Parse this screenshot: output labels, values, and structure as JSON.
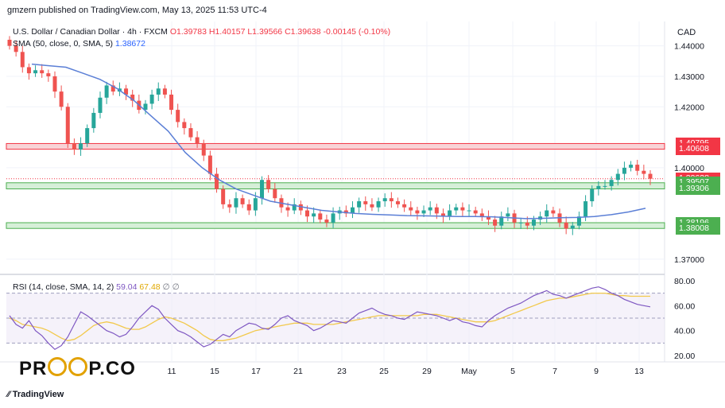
{
  "header": "gmzern published on TradingView.com, May 13, 2025 11:53 UTC-4",
  "legend": {
    "symbol": "U.S. Dollar / Canadian Dollar · 4h · FXCM",
    "o": "O1.39783",
    "h": "H1.40157",
    "l": "L1.39566",
    "c": "C1.39638",
    "chg": "-0.00145 (-0.10%)",
    "sma_label": "SMA (50, close, 0, SMA, 5)",
    "sma_value": "1.38672",
    "rsi_label": "RSI (14, close, SMA, 14, 2)",
    "rsi_value": "59.04",
    "rsi_ma_value": "67.48",
    "rsi_extra1": "∅",
    "rsi_extra2": "∅"
  },
  "currency": "CAD",
  "brand": {
    "left": "PR",
    "right": "P.CO"
  },
  "footer": "TradingView",
  "colors": {
    "up": "#26a69a",
    "down": "#ef5350",
    "sma": "#5b7fd6",
    "rsi": "#7e57c2",
    "rsi_ma": "#f2c94c",
    "resistance": "#f23645",
    "support": "#4caf50"
  },
  "chart_data": [
    {
      "type": "candlestick",
      "title": "U.S. Dollar / Canadian Dollar · 4h · FXCM",
      "ylim": [
        1.365,
        1.448
      ],
      "price_ticks": [
        "1.44000",
        "1.43000",
        "1.42000",
        "1.40000",
        "1.37000"
      ],
      "x_ticks": [
        "11",
        "15",
        "17",
        "21",
        "23",
        "25",
        "29",
        "May",
        "5",
        "7",
        "9",
        "13"
      ],
      "resistance_zone": [
        1.40608,
        1.40795
      ],
      "support_zones": [
        [
          1.39507,
          1.39306
        ],
        [
          1.38196,
          1.38008
        ]
      ],
      "price_labels": [
        {
          "text": "1.40795",
          "value": 1.40795,
          "color": "#f23645"
        },
        {
          "text": "1.40608",
          "value": 1.40608,
          "color": "#f23645"
        },
        {
          "text": "1.39638",
          "value": 1.39638,
          "color": "#f23645"
        },
        {
          "text": "01:06:10",
          "value": 1.3932,
          "color": "#f23645"
        },
        {
          "text": "1.39507",
          "value": 1.39507,
          "color": "#4caf50"
        },
        {
          "text": "1.39306",
          "value": 1.39306,
          "color": "#4caf50"
        },
        {
          "text": "1.38196",
          "value": 1.38196,
          "color": "#4caf50"
        },
        {
          "text": "1.38008",
          "value": 1.38008,
          "color": "#4caf50"
        }
      ],
      "close_series": [
        1.44,
        1.438,
        1.433,
        1.431,
        1.432,
        1.431,
        1.43,
        1.425,
        1.42,
        1.408,
        1.406,
        1.408,
        1.413,
        1.418,
        1.423,
        1.427,
        1.425,
        1.426,
        1.424,
        1.422,
        1.419,
        1.421,
        1.424,
        1.426,
        1.424,
        1.419,
        1.415,
        1.413,
        1.41,
        1.408,
        1.404,
        1.398,
        1.393,
        1.388,
        1.387,
        1.39,
        1.388,
        1.386,
        1.39,
        1.396,
        1.393,
        1.39,
        1.387,
        1.386,
        1.388,
        1.386,
        1.384,
        1.385,
        1.383,
        1.382,
        1.385,
        1.386,
        1.385,
        1.387,
        1.389,
        1.388,
        1.387,
        1.389,
        1.39,
        1.389,
        1.388,
        1.387,
        1.386,
        1.385,
        1.386,
        1.387,
        1.385,
        1.384,
        1.386,
        1.387,
        1.386,
        1.386,
        1.385,
        1.384,
        1.383,
        1.381,
        1.384,
        1.385,
        1.382,
        1.382,
        1.381,
        1.383,
        1.384,
        1.386,
        1.385,
        1.382,
        1.38,
        1.381,
        1.384,
        1.389,
        1.393,
        1.394,
        1.394,
        1.396,
        1.398,
        1.4,
        1.401,
        1.399,
        1.398,
        1.3964
      ],
      "sma_series": [
        1.434,
        1.4335,
        1.433,
        1.431,
        1.429,
        1.426,
        1.422,
        1.417,
        1.412,
        1.405,
        1.4,
        1.396,
        1.393,
        1.391,
        1.389,
        1.388,
        1.387,
        1.386,
        1.3855,
        1.385,
        1.3847,
        1.3845,
        1.3843,
        1.3842,
        1.3841,
        1.384,
        1.384,
        1.3839,
        1.3836,
        1.3833,
        1.3834,
        1.3836,
        1.3837,
        1.384,
        1.3846,
        1.3855,
        1.3867
      ]
    },
    {
      "type": "line",
      "title": "RSI (14, close, SMA, 14, 2)",
      "ylim": [
        15,
        85
      ],
      "y_ticks": [
        "80.00",
        "60.00",
        "40.00",
        "20.00"
      ],
      "levels": [
        70,
        50,
        30
      ],
      "rsi": [
        52,
        45,
        42,
        48,
        40,
        36,
        30,
        25,
        28,
        35,
        45,
        55,
        52,
        48,
        44,
        40,
        38,
        35,
        37,
        43,
        50,
        55,
        60,
        57,
        50,
        45,
        40,
        38,
        35,
        31,
        27,
        29,
        33,
        37,
        35,
        40,
        43,
        46,
        45,
        42,
        41,
        45,
        50,
        52,
        48,
        46,
        44,
        40,
        42,
        45,
        48,
        47,
        46,
        50,
        54,
        56,
        58,
        55,
        53,
        52,
        50,
        49,
        52,
        55,
        54,
        53,
        52,
        50,
        48,
        50,
        47,
        46,
        44,
        43,
        48,
        52,
        55,
        58,
        60,
        62,
        65,
        68,
        70,
        72,
        69,
        68,
        66,
        68,
        70,
        72,
        74,
        75,
        73,
        70,
        68,
        65,
        63,
        61,
        60,
        59.04
      ],
      "rsi_ma": [
        50,
        48,
        45,
        44,
        43,
        42,
        40,
        37,
        34,
        32,
        33,
        36,
        40,
        44,
        46,
        47,
        46,
        44,
        42,
        41,
        41,
        43,
        46,
        49,
        51,
        50,
        48,
        46,
        43,
        40,
        36,
        33,
        32,
        32,
        33,
        34,
        36,
        38,
        40,
        41,
        42,
        43,
        44,
        45,
        46,
        46,
        46,
        45,
        45,
        45,
        45,
        46,
        47,
        48,
        49,
        50,
        51,
        52,
        52,
        52,
        52,
        52,
        52,
        52,
        53,
        53,
        53,
        52,
        51,
        50,
        49,
        48,
        47,
        47,
        47,
        48,
        50,
        52,
        54,
        56,
        58,
        60,
        62,
        64,
        65,
        66,
        66,
        67,
        68,
        69,
        70,
        70,
        70,
        69,
        68,
        68,
        67.5,
        67.5,
        67.48,
        67.48
      ]
    }
  ]
}
